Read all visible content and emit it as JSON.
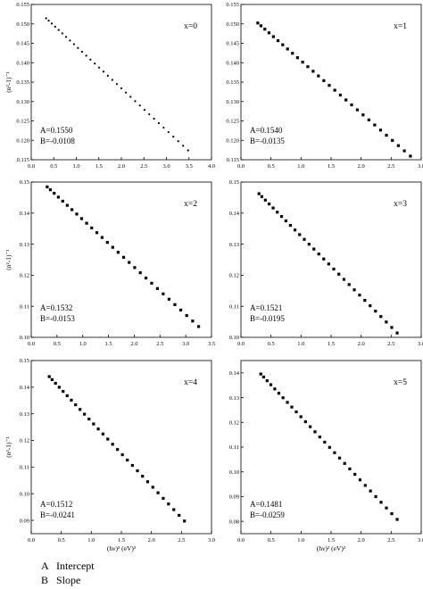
{
  "colors": {
    "axis": "#000000",
    "marker": "#000000",
    "background": "#ffffff"
  },
  "legend_notes": [
    {
      "key": "A",
      "text": "Intercept"
    },
    {
      "key": "B",
      "text": "Slope"
    }
  ],
  "chart_data": [
    {
      "type": "scatter",
      "panel_label": "x=0",
      "ylabel": "(n²-1)⁻¹",
      "xlabel": "",
      "xlim": [
        0,
        4.0
      ],
      "ylim": [
        0.115,
        0.155
      ],
      "xticks": [
        "0.0",
        "0.5",
        "1.0",
        "1.5",
        "2.0",
        "2.5",
        "3.0",
        "3.5",
        "4.0"
      ],
      "yticks": [
        "0.115",
        "0.120",
        "0.125",
        "0.130",
        "0.135",
        "0.140",
        "0.145",
        "0.150",
        "0.155"
      ],
      "annotations": [
        "A=0.1550",
        "B=-0.0108"
      ],
      "marker": "dot",
      "x_range": [
        0.33,
        3.48
      ],
      "count": 34,
      "intercept": 0.155,
      "slope": -0.0108
    },
    {
      "type": "scatter",
      "panel_label": "x=1",
      "ylabel": "",
      "xlabel": "",
      "xlim": [
        0,
        3.0
      ],
      "ylim": [
        0.115,
        0.155
      ],
      "xticks": [
        "0.0",
        "0.5",
        "1.0",
        "1.5",
        "2.0",
        "2.5",
        "3.0"
      ],
      "yticks": [
        "0.115",
        "0.120",
        "0.125",
        "0.130",
        "0.135",
        "0.140",
        "0.145",
        "0.150",
        "0.155"
      ],
      "annotations": [
        "A=0.1540",
        "B=-0.0135"
      ],
      "marker": "square",
      "x_range": [
        0.28,
        2.82
      ],
      "count": 30,
      "intercept": 0.154,
      "slope": -0.0135
    },
    {
      "type": "scatter",
      "panel_label": "x=2",
      "ylabel": "(n²-1)⁻¹",
      "xlabel": "",
      "xlim": [
        0,
        3.5
      ],
      "ylim": [
        0.1,
        0.15
      ],
      "xticks": [
        "0.0",
        "0.5",
        "1.0",
        "1.5",
        "2.0",
        "2.5",
        "3.0",
        "3.5"
      ],
      "yticks": [
        "0.10",
        "0.11",
        "0.12",
        "0.13",
        "0.14",
        "0.15"
      ],
      "annotations": [
        "A=0.1532",
        "B=-0.0153"
      ],
      "marker": "square",
      "x_range": [
        0.31,
        3.25
      ],
      "count": 30,
      "intercept": 0.1532,
      "slope": -0.0153
    },
    {
      "type": "scatter",
      "panel_label": "x=3",
      "ylabel": "",
      "xlabel": "",
      "xlim": [
        0,
        3.0
      ],
      "ylim": [
        0.1,
        0.15
      ],
      "xticks": [
        "0.0",
        "0.5",
        "1.0",
        "1.5",
        "2.0",
        "2.5",
        "3.0"
      ],
      "yticks": [
        "0.10",
        "0.11",
        "0.12",
        "0.13",
        "0.14",
        "0.15"
      ],
      "annotations": [
        "A=0.1521",
        "B=-0.0195"
      ],
      "marker": "square",
      "x_range": [
        0.3,
        2.6
      ],
      "count": 30,
      "intercept": 0.1521,
      "slope": -0.0195
    },
    {
      "type": "scatter",
      "panel_label": "x=4",
      "ylabel": "(n²-1)⁻¹",
      "xlabel": "(hν)² (eV)²",
      "xlim": [
        0,
        3.0
      ],
      "ylim": [
        0.085,
        0.15
      ],
      "xticks": [
        "0.0",
        "0.5",
        "1.0",
        "1.5",
        "2.0",
        "2.5",
        "3.0"
      ],
      "yticks": [
        "0.09",
        "0.10",
        "0.11",
        "0.12",
        "0.13",
        "0.14",
        "0.15"
      ],
      "annotations": [
        "A=0.1512",
        "B=-0.0241"
      ],
      "marker": "square",
      "x_range": [
        0.3,
        2.55
      ],
      "count": 30,
      "intercept": 0.1512,
      "slope": -0.0241
    },
    {
      "type": "scatter",
      "panel_label": "x=5",
      "ylabel": "",
      "xlabel": "(hν)² (eV)²",
      "xlim": [
        0,
        3.0
      ],
      "ylim": [
        0.075,
        0.145
      ],
      "xticks": [
        "0.0",
        "0.5",
        "1.0",
        "1.5",
        "2.0",
        "2.5",
        "3.0"
      ],
      "yticks": [
        "0.08",
        "0.09",
        "0.10",
        "0.11",
        "0.12",
        "0.13",
        "0.14"
      ],
      "annotations": [
        "A=0.1481",
        "B=-0.0259"
      ],
      "marker": "square",
      "x_range": [
        0.33,
        2.6
      ],
      "count": 30,
      "intercept": 0.1481,
      "slope": -0.0259
    }
  ]
}
